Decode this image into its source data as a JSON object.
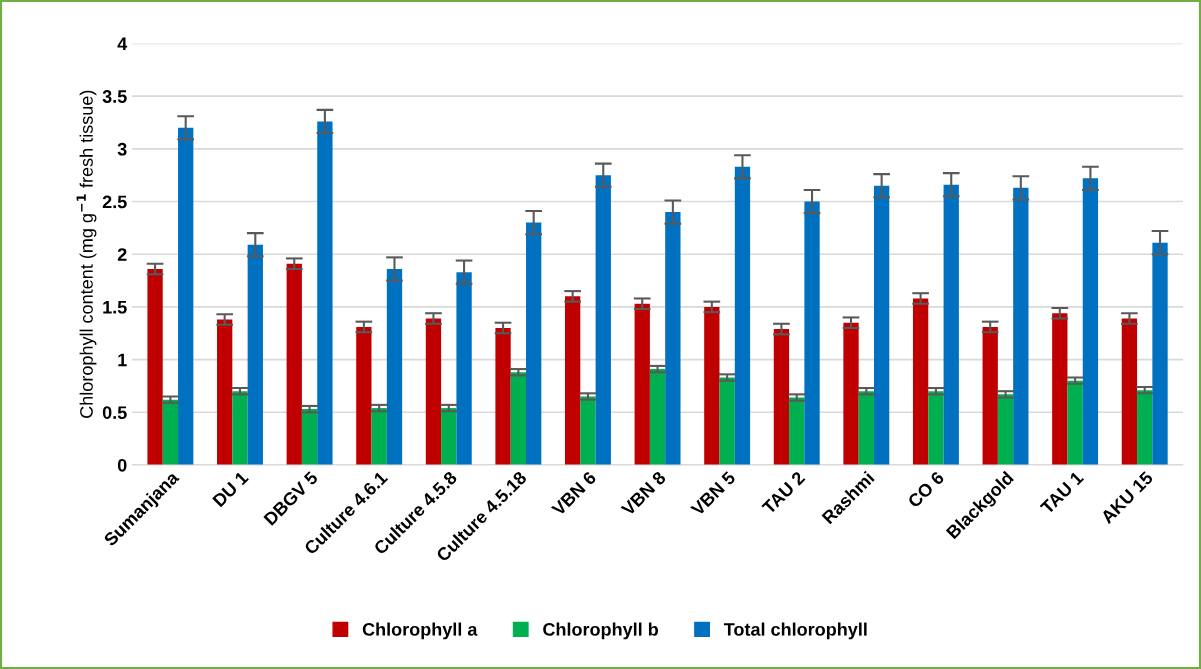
{
  "chart_data": {
    "type": "bar",
    "ylabel": "Chlorophyll content (mg g$^{−1}$ fresh tissue)",
    "categories": [
      "Sumanjana",
      "DU 1",
      "DBGV 5",
      "Culture 4.6.1",
      "Culture 4.5.8",
      "Culture 4.5.18",
      "VBN 6",
      "VBN 8",
      "VBN 5",
      "TAU 2",
      "Rashmi",
      "CO 6",
      "Blackgold",
      "TAU 1",
      "AKU 15"
    ],
    "series": [
      {
        "name": "Chlorophyll a",
        "color": "#c00000",
        "values": [
          1.86,
          1.38,
          1.91,
          1.31,
          1.39,
          1.3,
          1.6,
          1.53,
          1.5,
          1.29,
          1.35,
          1.58,
          1.31,
          1.44,
          1.39
        ],
        "errors": [
          0.05,
          0.05,
          0.05,
          0.05,
          0.05,
          0.05,
          0.05,
          0.05,
          0.05,
          0.05,
          0.05,
          0.05,
          0.05,
          0.05,
          0.05
        ]
      },
      {
        "name": "Chlorophyll b",
        "color": "#00b050",
        "values": [
          0.62,
          0.7,
          0.53,
          0.54,
          0.54,
          0.88,
          0.65,
          0.91,
          0.83,
          0.64,
          0.7,
          0.7,
          0.67,
          0.8,
          0.71
        ],
        "errors": [
          0.03,
          0.03,
          0.03,
          0.03,
          0.03,
          0.03,
          0.03,
          0.03,
          0.03,
          0.03,
          0.03,
          0.03,
          0.03,
          0.03,
          0.03
        ]
      },
      {
        "name": "Total chlorophyll",
        "color": "#0070c0",
        "values": [
          3.2,
          2.09,
          3.26,
          1.86,
          1.83,
          2.3,
          2.75,
          2.4,
          2.83,
          2.5,
          2.65,
          2.66,
          2.63,
          2.72,
          2.11
        ],
        "errors": [
          0.11,
          0.11,
          0.11,
          0.11,
          0.11,
          0.11,
          0.11,
          0.11,
          0.11,
          0.11,
          0.11,
          0.11,
          0.11,
          0.11,
          0.11
        ]
      }
    ],
    "ylim": [
      0,
      4
    ],
    "yticks": [
      0,
      0.5,
      1,
      1.5,
      2,
      2.5,
      3,
      3.5,
      4
    ],
    "grid": "y",
    "legend": "bottom"
  }
}
